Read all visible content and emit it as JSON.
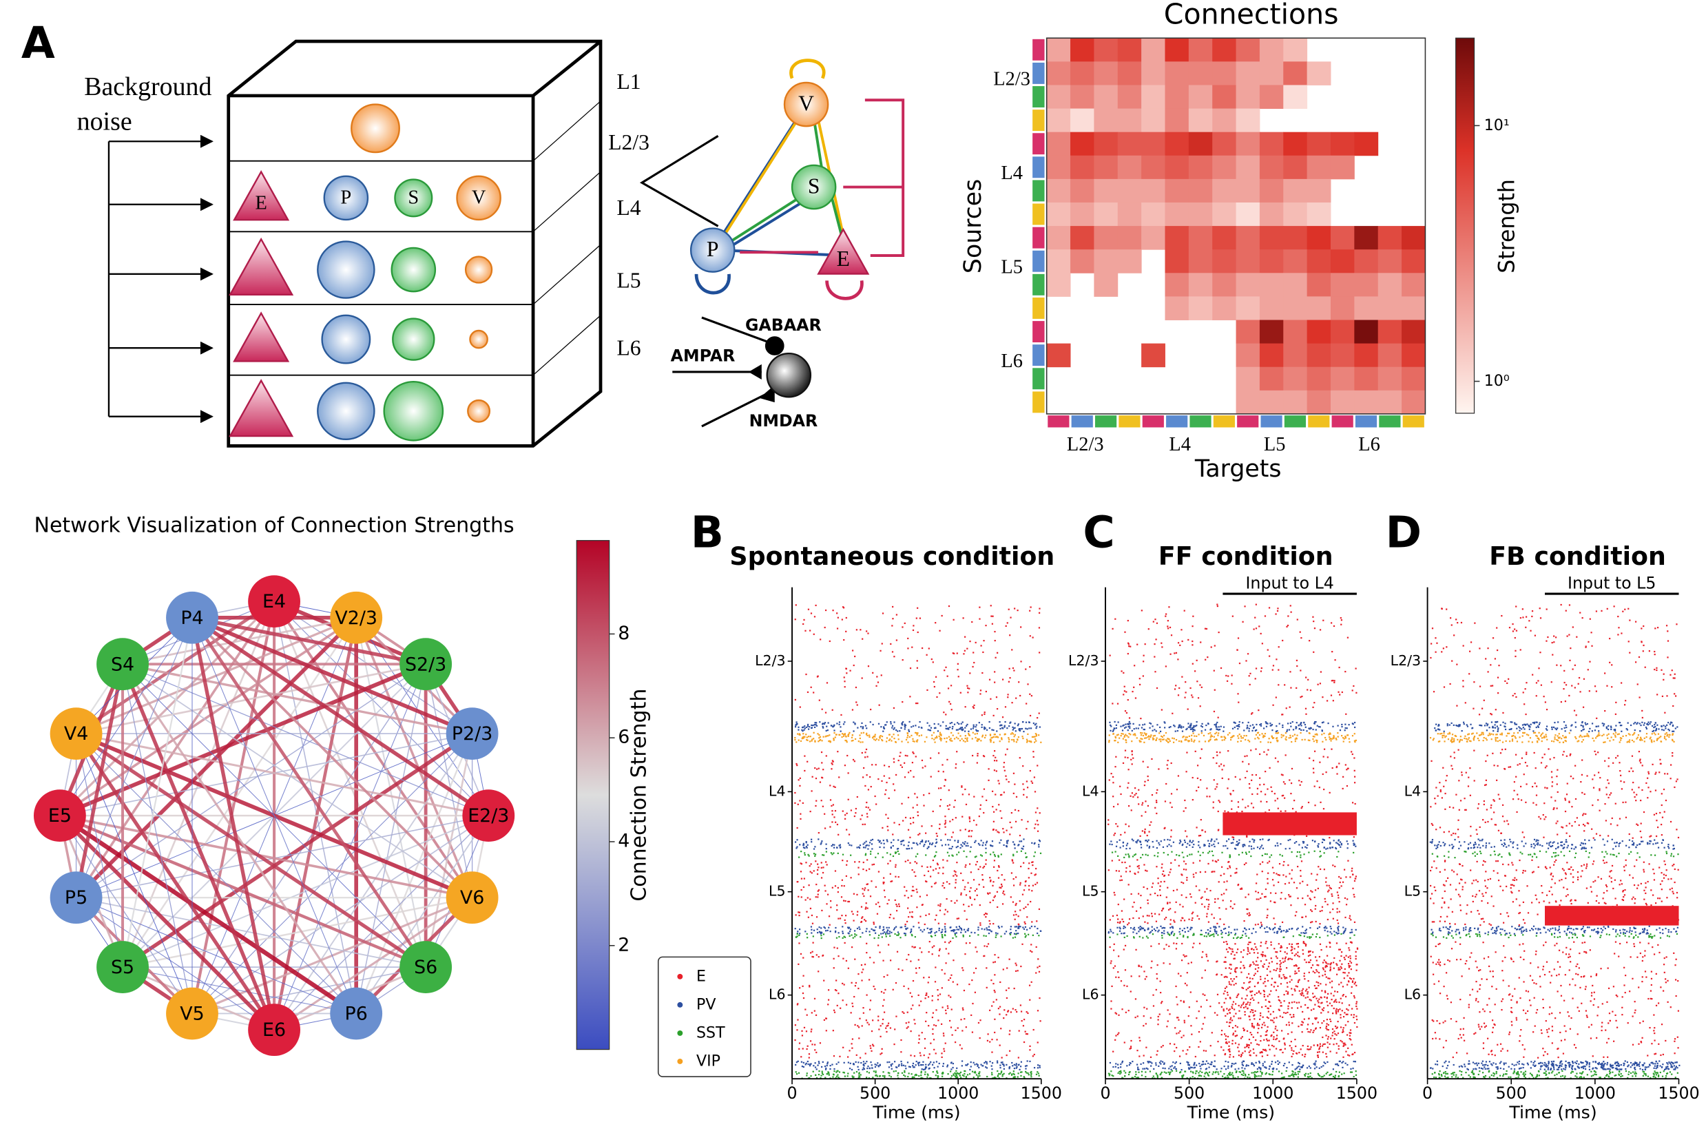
{
  "panel_a": {
    "letter": "A",
    "background_label": [
      "Background",
      "noise"
    ],
    "layers": [
      "L1",
      "L2/3",
      "L4",
      "L5",
      "L6"
    ],
    "cell_labels": [
      "E",
      "P",
      "S",
      "V"
    ],
    "circuit_labels": [
      "V",
      "S",
      "P",
      "E"
    ],
    "receptors": [
      "GABAAR",
      "AMPAR",
      "NMDAR"
    ]
  },
  "heatmap": {
    "title": "Connections",
    "ylabel": "Sources",
    "xlabel": "Targets",
    "colorbar_label": "Strength",
    "group_labels": [
      "L2/3",
      "L4",
      "L5",
      "L6"
    ],
    "log_scale": true,
    "clim": [
      0.75,
      22
    ],
    "cticks": [
      {
        "value": 1,
        "label": "10⁰"
      },
      {
        "value": 10,
        "label": "10¹"
      }
    ],
    "values": [
      [
        2,
        8,
        5,
        6,
        2,
        8,
        4,
        7,
        4,
        2,
        1.5,
        null,
        null,
        null,
        null,
        null
      ],
      [
        3,
        4,
        3,
        4,
        2,
        3,
        3,
        3,
        2,
        2,
        4,
        1.5,
        null,
        null,
        null,
        null
      ],
      [
        2,
        3,
        2,
        3,
        1.5,
        3,
        2,
        4,
        2,
        3,
        1,
        null,
        null,
        null,
        null,
        null
      ],
      [
        1.5,
        1,
        2,
        2,
        1.5,
        3,
        1.5,
        2,
        1.2,
        null,
        null,
        null,
        null,
        null,
        null,
        null
      ],
      [
        3,
        8,
        6,
        5,
        5,
        7,
        9,
        5,
        3,
        5,
        8,
        6,
        7,
        8,
        null,
        null
      ],
      [
        3,
        5,
        4,
        3,
        4,
        5,
        4,
        3,
        2,
        4,
        5,
        3,
        3,
        null,
        null,
        null
      ],
      [
        2,
        3,
        2,
        2,
        2,
        3,
        3,
        2,
        2,
        3,
        2,
        2,
        null,
        null,
        null,
        null
      ],
      [
        1.5,
        2,
        1.5,
        2,
        1.5,
        2,
        2,
        1.5,
        1,
        2,
        1.5,
        1.2,
        null,
        null,
        null,
        null
      ],
      [
        2,
        6,
        3,
        3,
        2,
        6,
        4,
        6,
        4,
        6,
        6,
        8,
        5,
        15,
        6,
        9
      ],
      [
        1.5,
        3,
        2,
        2,
        null,
        6,
        4,
        5,
        4,
        5,
        4,
        6,
        7,
        5,
        4,
        6
      ],
      [
        1.5,
        null,
        2,
        null,
        null,
        3,
        2,
        3,
        2,
        2,
        2,
        4,
        3,
        3,
        2,
        3
      ],
      [
        null,
        null,
        null,
        null,
        null,
        2,
        1.5,
        2,
        1.5,
        2,
        2,
        2,
        3,
        2,
        2,
        2
      ],
      [
        null,
        null,
        null,
        null,
        null,
        null,
        null,
        null,
        4,
        15,
        4,
        8,
        6,
        20,
        6,
        10
      ],
      [
        6,
        null,
        null,
        null,
        6,
        null,
        null,
        null,
        3,
        7,
        4,
        6,
        5,
        7,
        4,
        7
      ],
      [
        null,
        null,
        null,
        null,
        null,
        null,
        null,
        null,
        2,
        4,
        3,
        4,
        3,
        4,
        3,
        4
      ],
      [
        null,
        null,
        null,
        null,
        null,
        null,
        null,
        null,
        2,
        2,
        2,
        3,
        2,
        2,
        2,
        3
      ]
    ]
  },
  "network": {
    "title": "Network Visualization of Connection Strengths",
    "nodes": [
      "E4",
      "V2/3",
      "S2/3",
      "P2/3",
      "E2/3",
      "V6",
      "S6",
      "P6",
      "E6",
      "V5",
      "S5",
      "P5",
      "E5",
      "V4",
      "S4",
      "P4"
    ],
    "colorbar_label": "Connection Strength",
    "clim": [
      0,
      9.8
    ],
    "cticks": [
      2,
      4,
      6,
      8
    ]
  },
  "rasters": {
    "legend": [
      "E",
      "PV",
      "SST",
      "VIP"
    ],
    "xlabel": "Time (ms)",
    "xlim": [
      0,
      1500
    ],
    "xticks": [
      0,
      500,
      1000,
      1500
    ],
    "layer_labels": [
      "L2/3",
      "L4",
      "L5",
      "L6"
    ],
    "panels": [
      {
        "letter": "B",
        "title": "Spontaneous condition"
      },
      {
        "letter": "C",
        "title": "FF condition",
        "input": "Input to L4"
      },
      {
        "letter": "D",
        "title": "FB condition",
        "input": "Input to L5"
      }
    ]
  }
}
